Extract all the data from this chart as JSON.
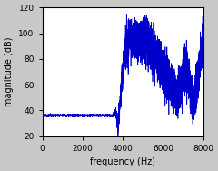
{
  "title": "",
  "xlabel": "frequency (Hz)",
  "ylabel": "magnitude (dB)",
  "xlim": [
    0,
    8000
  ],
  "ylim": [
    20,
    120
  ],
  "xticks": [
    0,
    2000,
    4000,
    6000,
    8000
  ],
  "yticks": [
    20,
    40,
    60,
    80,
    100,
    120
  ],
  "line_color": "#0000cc",
  "background_color": "#c8c8c8",
  "axes_face_color": "#ffffff",
  "seed": 12345
}
